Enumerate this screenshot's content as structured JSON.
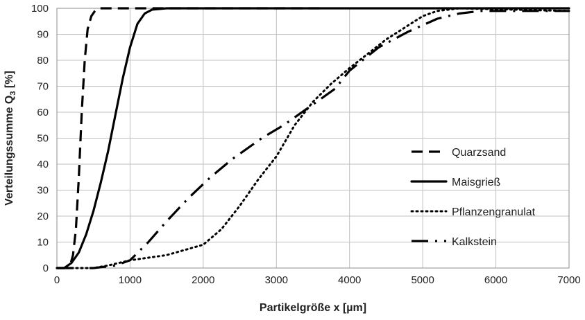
{
  "chart_data": {
    "type": "line",
    "title": "",
    "xlabel": "Partikelgröße x [µm]",
    "ylabel_main": "Verteilungssumme Q",
    "ylabel_sub": "3",
    "ylabel_unit": " [%]",
    "xlim": [
      0,
      7000
    ],
    "ylim": [
      0,
      100
    ],
    "xticks": [
      0,
      1000,
      2000,
      3000,
      4000,
      5000,
      6000,
      7000
    ],
    "yticks": [
      0,
      10,
      20,
      30,
      40,
      50,
      60,
      70,
      80,
      90,
      100
    ],
    "grid": true,
    "legend_position": "right",
    "series": [
      {
        "name": "Quarzsand",
        "style": "dashed",
        "points": [
          [
            0,
            0
          ],
          [
            100,
            0
          ],
          [
            180,
            1
          ],
          [
            220,
            5
          ],
          [
            260,
            15
          ],
          [
            300,
            35
          ],
          [
            340,
            60
          ],
          [
            380,
            80
          ],
          [
            420,
            92
          ],
          [
            470,
            97
          ],
          [
            520,
            99
          ],
          [
            580,
            100
          ],
          [
            3600,
            100
          ]
        ]
      },
      {
        "name": "Maisgrieß",
        "style": "solid",
        "points": [
          [
            0,
            0
          ],
          [
            100,
            0
          ],
          [
            200,
            2
          ],
          [
            300,
            6
          ],
          [
            400,
            13
          ],
          [
            500,
            22
          ],
          [
            600,
            33
          ],
          [
            700,
            45
          ],
          [
            800,
            59
          ],
          [
            900,
            73
          ],
          [
            1000,
            85
          ],
          [
            1100,
            94
          ],
          [
            1200,
            98
          ],
          [
            1300,
            99.5
          ],
          [
            1500,
            100
          ],
          [
            7000,
            100
          ]
        ]
      },
      {
        "name": "Pflanzengranulat",
        "style": "dotted",
        "points": [
          [
            0,
            0
          ],
          [
            500,
            0
          ],
          [
            700,
            1
          ],
          [
            1000,
            3
          ],
          [
            1500,
            5
          ],
          [
            2000,
            9
          ],
          [
            2250,
            15
          ],
          [
            2500,
            24
          ],
          [
            2750,
            34
          ],
          [
            3000,
            43
          ],
          [
            3250,
            55
          ],
          [
            3500,
            64
          ],
          [
            3750,
            71
          ],
          [
            4000,
            77
          ],
          [
            4500,
            88
          ],
          [
            5000,
            97
          ],
          [
            5200,
            99
          ],
          [
            5500,
            100
          ],
          [
            7000,
            99
          ]
        ]
      },
      {
        "name": "Kalkstein",
        "style": "dashdot",
        "points": [
          [
            0,
            0
          ],
          [
            500,
            0
          ],
          [
            800,
            1
          ],
          [
            1000,
            3
          ],
          [
            1250,
            10
          ],
          [
            1500,
            18
          ],
          [
            1800,
            27
          ],
          [
            2100,
            35
          ],
          [
            2400,
            42
          ],
          [
            2800,
            50
          ],
          [
            3100,
            55
          ],
          [
            3500,
            63
          ],
          [
            3800,
            69
          ],
          [
            4000,
            76
          ],
          [
            4400,
            85
          ],
          [
            4800,
            91
          ],
          [
            5200,
            96
          ],
          [
            5500,
            98
          ],
          [
            5800,
            99
          ],
          [
            7000,
            99
          ]
        ]
      }
    ]
  }
}
